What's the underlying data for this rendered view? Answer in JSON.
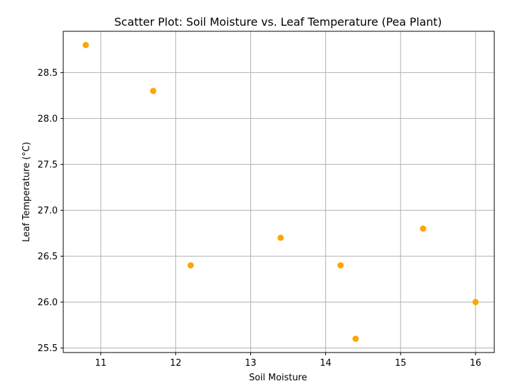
{
  "chart_data": {
    "type": "scatter",
    "title": "Scatter Plot: Soil Moisture vs. Leaf Temperature (Pea Plant)",
    "xlabel": "Soil Moisture",
    "ylabel": "Leaf Temperature (°C)",
    "xlim": [
      10.5,
      16.25
    ],
    "ylim": [
      25.45,
      28.95
    ],
    "x_ticks": [
      11,
      12,
      13,
      14,
      15,
      16
    ],
    "x_tick_labels": [
      "11",
      "12",
      "13",
      "14",
      "15",
      "16"
    ],
    "y_ticks": [
      25.5,
      26.0,
      26.5,
      27.0,
      27.5,
      28.0,
      28.5
    ],
    "y_tick_labels": [
      "25.5",
      "26.0",
      "26.5",
      "27.0",
      "27.5",
      "28.0",
      "28.5"
    ],
    "grid": true,
    "marker_color": "#FFA500",
    "x": [
      10.8,
      11.7,
      12.2,
      13.4,
      14.2,
      14.4,
      15.3,
      16.0
    ],
    "y": [
      28.8,
      28.3,
      26.4,
      26.7,
      26.4,
      25.6,
      26.8,
      26.0
    ]
  }
}
